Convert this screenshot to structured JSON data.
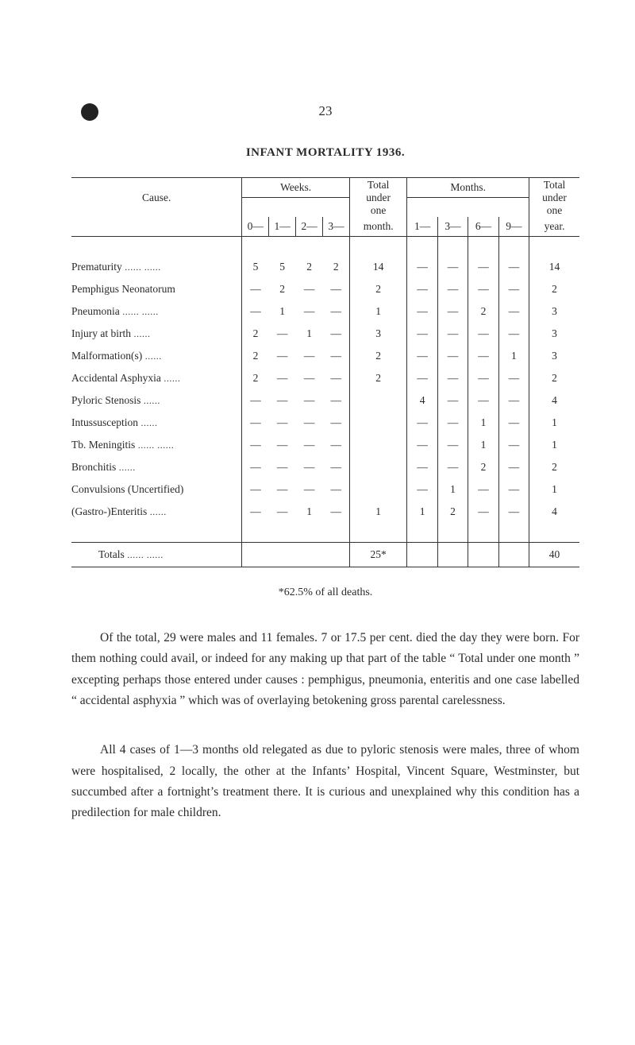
{
  "page_number": "23",
  "title": "INFANT MORTALITY 1936.",
  "dash": "—",
  "headers": {
    "cause": "Cause.",
    "weeks": "Weeks.",
    "total_under_one_month": [
      "Total",
      "under",
      "one",
      "month."
    ],
    "months": "Months.",
    "total_under_one_year": [
      "Total",
      "under",
      "one",
      "year."
    ],
    "week_cols": [
      "0—",
      "1—",
      "2—",
      "3—"
    ],
    "month_cols": [
      "1—",
      "3—",
      "6—",
      "9—"
    ]
  },
  "rows": [
    {
      "cause": "Prematurity",
      "trail": "......   ......",
      "w": [
        "5",
        "5",
        "2",
        "2"
      ],
      "tm": "14",
      "m": [
        "—",
        "—",
        "—",
        "—"
      ],
      "ty": "14"
    },
    {
      "cause": "Pemphigus Neonatorum",
      "trail": "",
      "w": [
        "—",
        "2",
        "—",
        "—"
      ],
      "tm": "2",
      "m": [
        "—",
        "—",
        "—",
        "—"
      ],
      "ty": "2"
    },
    {
      "cause": "Pneumonia",
      "trail": "      ......   ......",
      "w": [
        "—",
        "1",
        "—",
        "—"
      ],
      "tm": "1",
      "m": [
        "—",
        "—",
        "2",
        "—"
      ],
      "ty": "3"
    },
    {
      "cause": "Injury at birth",
      "trail": "          ......",
      "w": [
        "2",
        "—",
        "1",
        "—"
      ],
      "tm": "3",
      "m": [
        "—",
        "—",
        "—",
        "—"
      ],
      "ty": "3"
    },
    {
      "cause": "Malformation(s)",
      "trail": "        ......",
      "w": [
        "2",
        "—",
        "—",
        "—"
      ],
      "tm": "2",
      "m": [
        "—",
        "—",
        "—",
        "1"
      ],
      "ty": "3"
    },
    {
      "cause": "Accidental Asphyxia",
      "trail": " ......",
      "w": [
        "2",
        "—",
        "—",
        "—"
      ],
      "tm": "2",
      "m": [
        "—",
        "—",
        "—",
        "—"
      ],
      "ty": "2"
    },
    {
      "cause": "Pyloric Stenosis",
      "trail": "         ......",
      "w": [
        "—",
        "—",
        "—",
        "—"
      ],
      "tm": "",
      "m": [
        "4",
        "—",
        "—",
        "—"
      ],
      "ty": "4"
    },
    {
      "cause": "Intussusception",
      "trail": "          ......",
      "w": [
        "—",
        "—",
        "—",
        "—"
      ],
      "tm": "",
      "m": [
        "—",
        "—",
        "1",
        "—"
      ],
      "ty": "1"
    },
    {
      "cause": "Tb. Meningitis",
      "trail": " ......    ......",
      "w": [
        "—",
        "—",
        "—",
        "—"
      ],
      "tm": "",
      "m": [
        "—",
        "—",
        "1",
        "—"
      ],
      "ty": "1"
    },
    {
      "cause": "Bronchitis",
      "trail": "                   ......",
      "w": [
        "—",
        "—",
        "—",
        "—"
      ],
      "tm": "",
      "m": [
        "—",
        "—",
        "2",
        "—"
      ],
      "ty": "2"
    },
    {
      "cause": "Convulsions (Uncertified)",
      "trail": "",
      "w": [
        "—",
        "—",
        "—",
        "—"
      ],
      "tm": "",
      "m": [
        "—",
        "1",
        "—",
        "—"
      ],
      "ty": "1"
    },
    {
      "cause": "(Gastro-)Enteritis",
      "trail": "      ......",
      "w": [
        "—",
        "—",
        "1",
        "—"
      ],
      "tm": "1",
      "m": [
        "1",
        "2",
        "—",
        "—"
      ],
      "ty": "4"
    }
  ],
  "totals_row": {
    "label": "Totals",
    "trail": "        ......   ......",
    "tm": "25*",
    "ty": "40"
  },
  "footnote": "*62.5% of all deaths.",
  "paragraphs": [
    "Of the total, 29 were males and 11 females.   7 or 17.5 per cent. died the day they were born.  For them nothing could avail, or indeed for any making up that part of the table “ Total under one month ” excepting perhaps those entered under causes :  pemphigus, pneumonia, enteritis and one case labelled “ accidental asphyxia ” which was of overlaying betokening gross parental carelessness.",
    "All 4 cases of 1—3 months old relegated as due to pyloric stenosis were males, three of whom were hospitalised, 2 locally, the other at the Infants’ Hospital, Vincent Square, Westminster, but succumbed after a fortnight’s treatment there.  It is curious and unexplained why this condition has a predilection for male children."
  ],
  "colors": {
    "text": "#2a2a2a",
    "rule": "#333333",
    "background": "#ffffff",
    "bullet": "#222222"
  },
  "typography": {
    "body_fontsize_pt": 12,
    "title_fontsize_pt": 11,
    "table_fontsize_pt": 10,
    "font_family": "Times New Roman, serif"
  }
}
